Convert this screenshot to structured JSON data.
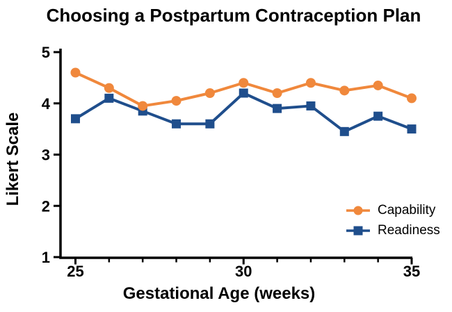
{
  "figure": {
    "background": "#FFFFFF",
    "text_color": "#000000",
    "axis_color": "#000000"
  },
  "chart_data": {
    "type": "line",
    "title": "Choosing a Postpartum Contraception Plan",
    "xlabel": "Gestational Age (weeks)",
    "ylabel": "Likert Scale",
    "x": [
      25,
      26,
      27,
      28,
      29,
      30,
      31,
      32,
      33,
      34,
      35
    ],
    "series": [
      {
        "name": "Capability",
        "color": "#F0883C",
        "marker": "circle",
        "values": [
          4.6,
          4.3,
          3.95,
          4.05,
          4.2,
          4.4,
          4.2,
          4.4,
          4.25,
          4.35,
          4.1
        ]
      },
      {
        "name": "Readiness",
        "color": "#1F4E8C",
        "marker": "square",
        "values": [
          3.7,
          4.1,
          3.85,
          3.6,
          3.6,
          4.2,
          3.9,
          3.95,
          3.45,
          3.75,
          3.5
        ]
      }
    ],
    "xlim": [
      24.5,
      35
    ],
    "ylim": [
      1,
      5
    ],
    "yticks": [
      1,
      2,
      3,
      4,
      5
    ],
    "xticks_major": [
      25,
      30,
      35
    ],
    "xticks_minor": [
      26,
      27,
      28,
      29,
      31,
      32,
      33,
      34
    ],
    "grid": false,
    "legend_position": "inside-right-middle"
  }
}
